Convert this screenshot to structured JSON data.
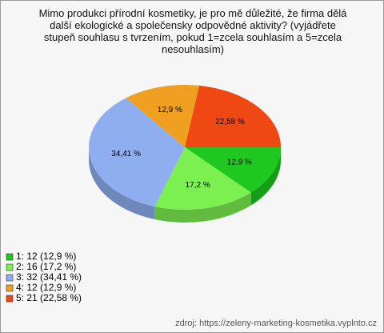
{
  "chart_data": {
    "type": "pie",
    "title": "Mimo produkci přírodní kosmetiky, je pro mě důležité, že firma dělá další ekologické a společensky odpovědné aktivity? (vyjádřete stupeň souhlasu s tvrzením, pokud 1=zcela souhlasím a 5=zcela nesouhlasím)",
    "categories": [
      "1: 12 (12,9 %)",
      "2: 16 (17,2 %)",
      "3: 32 (34,41 %)",
      "4: 12 (12,9 %)",
      "5: 21 (22,58 %)"
    ],
    "values": [
      12.9,
      17.2,
      34.41,
      12.9,
      22.58
    ],
    "value_labels": [
      "12,9 %",
      "17,2 %",
      "34,41 %",
      "12,9 %",
      "22,58 %"
    ],
    "colors": [
      "#1ec81e",
      "#7cf050",
      "#8eaef0",
      "#f0a020",
      "#f04812"
    ],
    "source": "zdroj: https://zeleny-marketing-kosmetika.vyplnto.cz"
  }
}
